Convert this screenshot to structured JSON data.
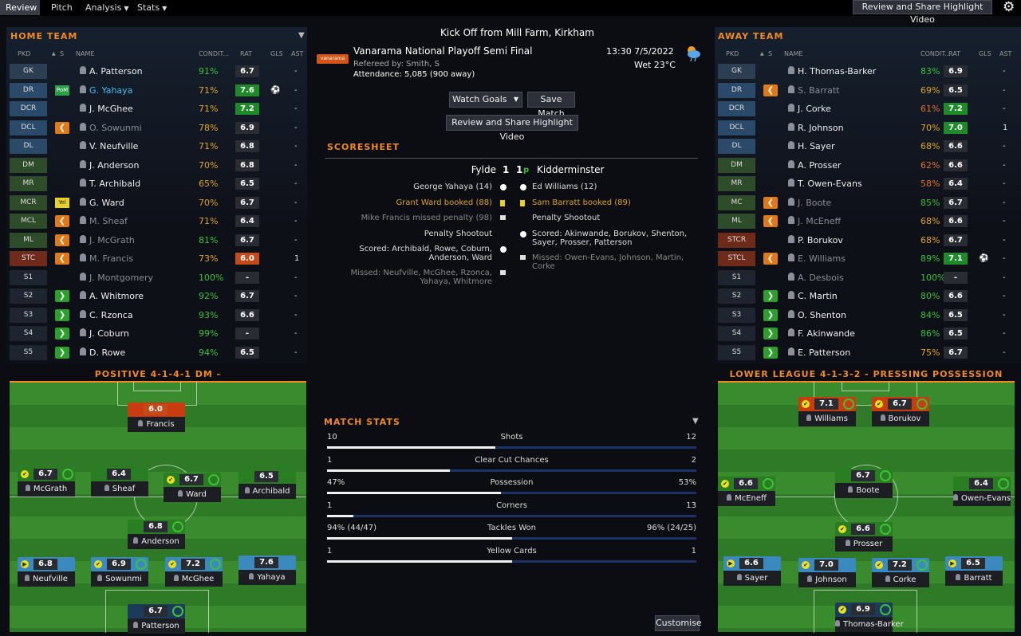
{
  "nav": {
    "tabs": [
      {
        "label": "Review"
      },
      {
        "label": "Pitch"
      },
      {
        "label": "Analysis"
      },
      {
        "label": "Stats"
      }
    ],
    "review_share": "Review and Share Highlight Video"
  },
  "home": {
    "header": "HOME TEAM",
    "cols": {
      "pkd": "PKD",
      "s": "S",
      "name": "NAME",
      "cond": "CONDIT...",
      "rat": "RAT",
      "gls": "GLS",
      "ast": "AST"
    },
    "players": [
      {
        "pos": "GK",
        "name": "A. Patterson",
        "cond": "91%",
        "rat": "6.7",
        "gls": "",
        "ast": "-"
      },
      {
        "pos": "DR",
        "badge": "PoM",
        "name": "G. Yahaya",
        "cond": "71%",
        "rat": "7.6",
        "gls": "ball",
        "ast": "-"
      },
      {
        "pos": "DCR",
        "name": "J. McGhee",
        "cond": "71%",
        "rat": "7.2",
        "gls": "",
        "ast": "-"
      },
      {
        "pos": "DCL",
        "badge": "out",
        "name": "O. Sowunmi",
        "cond": "78%",
        "rat": "6.9",
        "gls": "",
        "ast": "-"
      },
      {
        "pos": "DL",
        "name": "V. Neufville",
        "cond": "71%",
        "rat": "6.8",
        "gls": "",
        "ast": "-"
      },
      {
        "pos": "DM",
        "name": "J. Anderson",
        "cond": "70%",
        "rat": "6.8",
        "gls": "",
        "ast": "-"
      },
      {
        "pos": "MR",
        "name": "T. Archibald",
        "cond": "65%",
        "rat": "6.5",
        "gls": "",
        "ast": "-"
      },
      {
        "pos": "MCR",
        "badge": "Yel",
        "name": "G. Ward",
        "cond": "70%",
        "rat": "6.7",
        "gls": "",
        "ast": "-"
      },
      {
        "pos": "MCL",
        "badge": "out",
        "name": "M. Sheaf",
        "cond": "71%",
        "rat": "6.4",
        "gls": "",
        "ast": "-"
      },
      {
        "pos": "ML",
        "badge": "out",
        "name": "J. McGrath",
        "cond": "81%",
        "rat": "6.7",
        "gls": "",
        "ast": "-"
      },
      {
        "pos": "STC",
        "badge": "out",
        "name": "M. Francis",
        "cond": "73%",
        "rat": "6.0",
        "gls": "",
        "ast": "1"
      },
      {
        "pos": "S1",
        "name": "J. Montgomery",
        "cond": "100%",
        "rat": "-",
        "gls": "",
        "ast": "-"
      },
      {
        "pos": "S2",
        "badge": "in",
        "name": "A. Whitmore",
        "cond": "92%",
        "rat": "6.7",
        "gls": "",
        "ast": "-"
      },
      {
        "pos": "S3",
        "badge": "in",
        "name": "C. Rzonca",
        "cond": "93%",
        "rat": "6.6",
        "gls": "",
        "ast": "-"
      },
      {
        "pos": "S4",
        "badge": "in",
        "name": "J. Coburn",
        "cond": "99%",
        "rat": "-",
        "gls": "",
        "ast": "-"
      },
      {
        "pos": "S5",
        "badge": "in",
        "name": "D. Rowe",
        "cond": "94%",
        "rat": "6.5",
        "gls": "",
        "ast": "-"
      }
    ],
    "tactic": "POSITIVE 4-1-4-1 DM -",
    "tokens": [
      {
        "name": "Francis",
        "rat": "6.0"
      },
      {
        "name": "McGrath",
        "rat": "6.7"
      },
      {
        "name": "Sheaf",
        "rat": "6.4"
      },
      {
        "name": "Ward",
        "rat": "6.7"
      },
      {
        "name": "Archibald",
        "rat": "6.5"
      },
      {
        "name": "Anderson",
        "rat": "6.8"
      },
      {
        "name": "Neufville",
        "rat": "6.8"
      },
      {
        "name": "Sowunmi",
        "rat": "6.9"
      },
      {
        "name": "McGhee",
        "rat": "7.2"
      },
      {
        "name": "Yahaya",
        "rat": "7.6"
      },
      {
        "name": "Patterson",
        "rat": "6.7"
      }
    ]
  },
  "away": {
    "header": "AWAY TEAM",
    "cols": {
      "pkd": "PKD",
      "s": "S",
      "name": "NAME",
      "cond": "CONDIT...",
      "rat": "RAT",
      "gls": "GLS",
      "ast": "AST"
    },
    "players": [
      {
        "pos": "GK",
        "name": "H. Thomas-Barker",
        "cond": "83%",
        "rat": "6.9",
        "gls": "",
        "ast": "-"
      },
      {
        "pos": "DR",
        "badge": "out",
        "name": "S. Barratt",
        "cond": "69%",
        "rat": "6.5",
        "gls": "",
        "ast": "-"
      },
      {
        "pos": "DCR",
        "name": "J. Corke",
        "cond": "61%",
        "rat": "7.2",
        "gls": "",
        "ast": "-"
      },
      {
        "pos": "DCL",
        "name": "R. Johnson",
        "cond": "70%",
        "rat": "7.0",
        "gls": "",
        "ast": "1"
      },
      {
        "pos": "DL",
        "name": "H. Sayer",
        "cond": "68%",
        "rat": "6.6",
        "gls": "",
        "ast": "-"
      },
      {
        "pos": "DM",
        "name": "A. Prosser",
        "cond": "62%",
        "rat": "6.6",
        "gls": "",
        "ast": "-"
      },
      {
        "pos": "MR",
        "name": "T. Owen-Evans",
        "cond": "58%",
        "rat": "6.4",
        "gls": "",
        "ast": "-"
      },
      {
        "pos": "MC",
        "badge": "out",
        "name": "J. Boote",
        "cond": "85%",
        "rat": "6.7",
        "gls": "",
        "ast": "-"
      },
      {
        "pos": "ML",
        "badge": "out",
        "name": "J. McEneff",
        "cond": "68%",
        "rat": "6.6",
        "gls": "",
        "ast": "-"
      },
      {
        "pos": "STCR",
        "name": "P. Borukov",
        "cond": "68%",
        "rat": "6.7",
        "gls": "",
        "ast": "-"
      },
      {
        "pos": "STCL",
        "badge": "out",
        "name": "E. Williams",
        "cond": "89%",
        "rat": "7.1",
        "gls": "ball",
        "ast": "-"
      },
      {
        "pos": "S1",
        "name": "A. Desbois",
        "cond": "100%",
        "rat": "-",
        "gls": "",
        "ast": "-"
      },
      {
        "pos": "S2",
        "badge": "in",
        "name": "C. Martin",
        "cond": "80%",
        "rat": "6.6",
        "gls": "",
        "ast": "-"
      },
      {
        "pos": "S3",
        "badge": "in",
        "name": "O. Shenton",
        "cond": "84%",
        "rat": "6.5",
        "gls": "",
        "ast": "-"
      },
      {
        "pos": "S4",
        "badge": "in",
        "name": "F. Akinwande",
        "cond": "86%",
        "rat": "6.5",
        "gls": "",
        "ast": "-"
      },
      {
        "pos": "S5",
        "badge": "in",
        "name": "E. Patterson",
        "cond": "75%",
        "rat": "6.7",
        "gls": "",
        "ast": "-"
      }
    ],
    "tactic": "LOWER LEAGUE 4-1-3-2 - PRESSING POSSESSION PLAY",
    "tokens": [
      {
        "name": "Williams",
        "rat": "7.1"
      },
      {
        "name": "Borukov",
        "rat": "6.7"
      },
      {
        "name": "McEneff",
        "rat": "6.6"
      },
      {
        "name": "Boote",
        "rat": "6.7"
      },
      {
        "name": "Owen-Evans",
        "rat": "6.4"
      },
      {
        "name": "Prosser",
        "rat": "6.6"
      },
      {
        "name": "Sayer",
        "rat": "6.6"
      },
      {
        "name": "Johnson",
        "rat": "7.0"
      },
      {
        "name": "Corke",
        "rat": "7.2"
      },
      {
        "name": "Barratt",
        "rat": "6.5"
      },
      {
        "name": "Thomas-Barker",
        "rat": "6.9"
      }
    ]
  },
  "match": {
    "kickoff": "Kick Off from Mill Farm, Kirkham",
    "competition": "Vanarama National Playoff Semi Final",
    "comp_logo": "vanarama",
    "referee": "Refereed by: Smith, S",
    "attendance": "Attendance: 5,085 (900 away)",
    "time": "13:30 7/5/2022",
    "weather": "Wet 23°C",
    "watch": "Watch Goals",
    "save": "Save Match",
    "review_share": "Review and Share Highlight Video",
    "customise": "Customise"
  },
  "scoresheet": {
    "title": "SCORESHEET",
    "home_team": "Fylde",
    "home_score": "1",
    "away_score": "1",
    "pen_mark": "p",
    "away_team": "Kidderminster",
    "home_events": [
      {
        "text": "George Yahaya (14)",
        "type": "goal"
      },
      {
        "text": "Grant Ward booked (88)",
        "type": "yellow"
      },
      {
        "text": "Mike Francis missed penalty (98)",
        "type": "miss"
      },
      {
        "text": "Penalty Shootout",
        "type": "none"
      },
      {
        "text": "Scored: Archibald, Rowe, Coburn, Anderson, Ward",
        "type": "goal"
      },
      {
        "text": "Missed: Neufville, McGhee, Rzonca, Yahaya, Whitmore",
        "type": "miss"
      }
    ],
    "away_events": [
      {
        "text": "Ed Williams (12)",
        "type": "goal"
      },
      {
        "text": "Sam Barratt booked (89)",
        "type": "yellow"
      },
      {
        "text": "Penalty Shootout",
        "type": "none"
      },
      {
        "text": "Scored: Akinwande, Borukov, Shenton, Sayer, Prosser, Patterson",
        "type": "goal"
      },
      {
        "text": "Missed: Owen-Evans, Johnson, Martin, Corke",
        "type": "miss"
      }
    ]
  },
  "stats": {
    "title": "MATCH STATS",
    "rows": [
      {
        "label": "Shots",
        "home": "10",
        "away": "12",
        "home_share": 0.455
      },
      {
        "label": "Clear Cut Chances",
        "home": "1",
        "away": "2",
        "home_share": 0.333
      },
      {
        "label": "Possession",
        "home": "47%",
        "away": "53%",
        "home_share": 0.47
      },
      {
        "label": "Corners",
        "home": "1",
        "away": "13",
        "home_share": 0.071
      },
      {
        "label": "Tackles Won",
        "home": "94% (44/47)",
        "away": "96% (24/25)",
        "home_share": 0.5
      },
      {
        "label": "Yellow Cards",
        "home": "1",
        "away": "1",
        "home_share": 0.5
      }
    ]
  },
  "colors": {
    "accent": "#f08a22",
    "good_rating": "#1f8a2a",
    "bad_rating": "#c44a1a"
  }
}
